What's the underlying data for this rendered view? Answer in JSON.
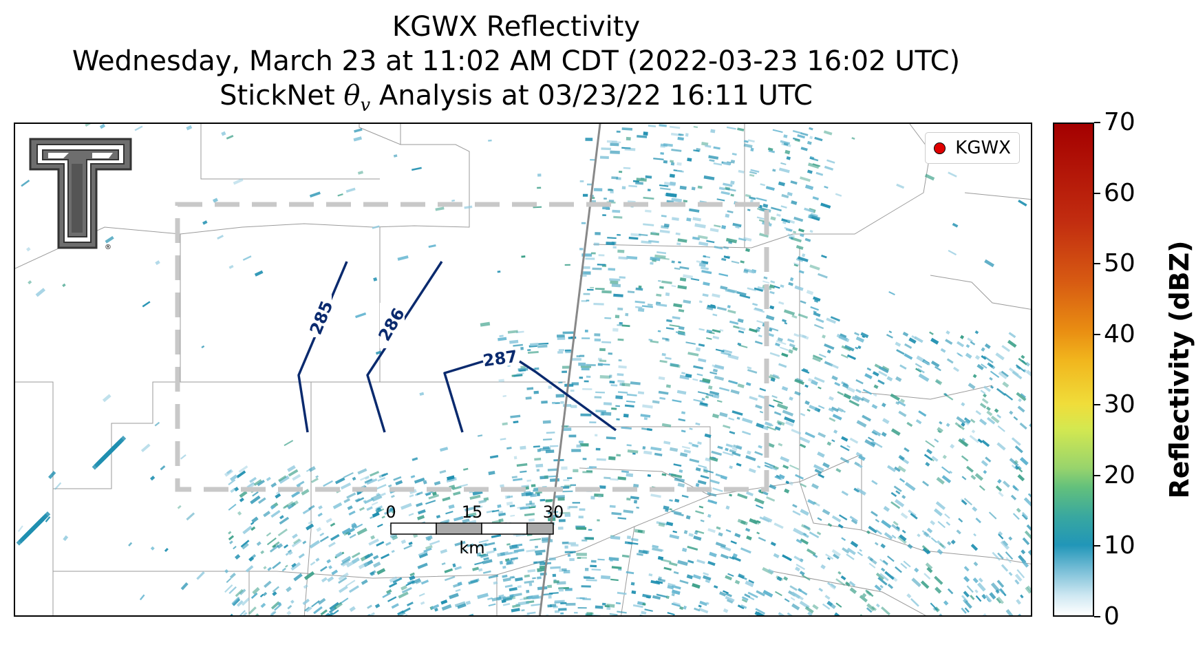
{
  "title": {
    "line1": "KGWX Reflectivity",
    "line2": "Wednesday, March 23 at 11:02 AM CDT (2022-03-23 16:02 UTC)",
    "line3_prefix": "StickNet ",
    "line3_theta": "θ",
    "line3_sub": "v",
    "line3_suffix": " Analysis at 03/23/22 16:11 UTC"
  },
  "legend": {
    "label": "KGWX",
    "marker_color": "#e00000"
  },
  "contours": [
    {
      "label": "285"
    },
    {
      "label": "286"
    },
    {
      "label": "287"
    }
  ],
  "scale_bar": {
    "ticks": [
      "0",
      "15",
      "30"
    ],
    "unit": "km"
  },
  "logo": {
    "name": "Texas Tech Double T",
    "mark": "®"
  },
  "colorbar": {
    "title": "Reflectivity (dBZ)",
    "min": 0,
    "max": 70,
    "ticks": [
      "0",
      "10",
      "20",
      "30",
      "40",
      "50",
      "60",
      "70"
    ]
  },
  "colors": {
    "contour": "#0a2a6e",
    "domain_box": "#c8c8c8",
    "echo_main": "#1f8fb0",
    "echo_light": "#8fc9de",
    "echo_green": "#3a9f88"
  }
}
